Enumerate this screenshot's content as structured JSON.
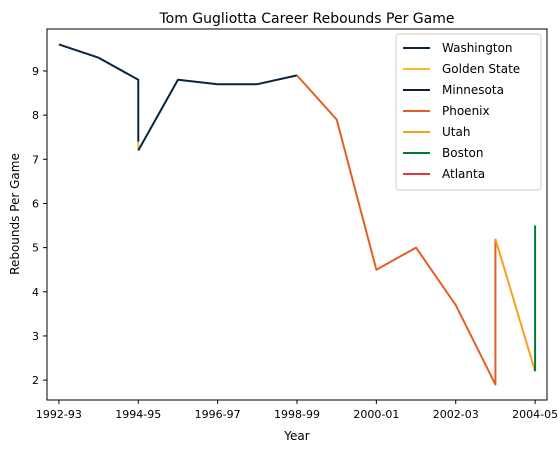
{
  "chart_data": {
    "type": "line",
    "title": "Tom Gugliotta Career Rebounds Per Game",
    "xlabel": "Year",
    "ylabel": "Rebounds Per Game",
    "xlim": [
      -0.3,
      12.3
    ],
    "ylim": [
      1.55,
      9.95
    ],
    "x_ticks": [
      {
        "value": 0,
        "label": "1992-93"
      },
      {
        "value": 2,
        "label": "1994-95"
      },
      {
        "value": 4,
        "label": "1996-97"
      },
      {
        "value": 6,
        "label": "1998-99"
      },
      {
        "value": 8,
        "label": "2000-01"
      },
      {
        "value": 10,
        "label": "2002-03"
      },
      {
        "value": 12,
        "label": "2004-05"
      }
    ],
    "y_ticks": [
      2,
      3,
      4,
      5,
      6,
      7,
      8,
      9
    ],
    "grid": false,
    "legend_position": "top-right",
    "series": [
      {
        "name": "Washington",
        "color": "#0b2545",
        "points": [
          [
            0,
            9.6
          ],
          [
            1,
            9.3
          ],
          [
            2,
            8.8
          ],
          [
            2,
            7.4
          ]
        ]
      },
      {
        "name": "Golden State",
        "color": "#fdb927",
        "points": [
          [
            2,
            7.4
          ],
          [
            2,
            7.2
          ]
        ]
      },
      {
        "name": "Minnesota",
        "color": "#0c2340",
        "points": [
          [
            2,
            7.2
          ],
          [
            3,
            8.8
          ],
          [
            4,
            8.7
          ],
          [
            5,
            8.7
          ],
          [
            6,
            8.9
          ]
        ]
      },
      {
        "name": "Phoenix",
        "color": "#e56020",
        "points": [
          [
            6,
            8.9
          ],
          [
            7,
            7.9
          ],
          [
            8,
            4.5
          ],
          [
            9,
            5.0
          ],
          [
            10,
            3.7
          ],
          [
            11,
            1.9
          ],
          [
            11,
            5.2
          ]
        ]
      },
      {
        "name": "Utah",
        "color": "#f9a01b",
        "points": [
          [
            11,
            5.2
          ],
          [
            12,
            2.2
          ]
        ]
      },
      {
        "name": "Boston",
        "color": "#007a33",
        "points": [
          [
            12,
            2.2
          ],
          [
            12,
            5.5
          ]
        ]
      },
      {
        "name": "Atlanta",
        "color": "#e03a3e",
        "points": []
      }
    ]
  }
}
